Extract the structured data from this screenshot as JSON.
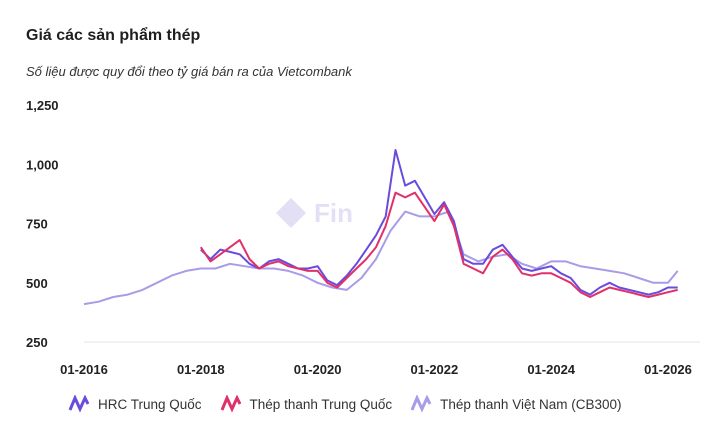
{
  "title": "Giá các sản phẩm thép",
  "subtitle": "Số liệu được quy đổi theo tỷ giá bán ra của Vietcombank",
  "watermark_text": "Fin",
  "colors": {
    "hrc": "#6a4bdb",
    "thep_tq": "#e0306a",
    "thep_vn": "#a99be8",
    "axis": "#222222"
  },
  "chart_data": {
    "type": "line",
    "title": "Giá các sản phẩm thép",
    "subtitle": "Số liệu được quy đổi theo tỷ giá bán ra của Vietcombank",
    "x_ticks": [
      "01-2016",
      "01-2018",
      "01-2020",
      "01-2022",
      "01-2024",
      "01-2026"
    ],
    "y_ticks": [
      "250",
      "500",
      "750",
      "1,000",
      "1,250"
    ],
    "ylim": [
      250,
      1250
    ],
    "xlim": [
      "2016-01",
      "2026-04"
    ],
    "legend_position": "bottom",
    "series": [
      {
        "name": "HRC Trung Quốc",
        "color": "#6a4bdb",
        "x": [
          "2018-01",
          "2018-03",
          "2018-05",
          "2018-07",
          "2018-09",
          "2018-11",
          "2019-01",
          "2019-03",
          "2019-05",
          "2019-07",
          "2019-09",
          "2019-11",
          "2020-01",
          "2020-03",
          "2020-05",
          "2020-07",
          "2020-09",
          "2020-11",
          "2021-01",
          "2021-03",
          "2021-05",
          "2021-07",
          "2021-09",
          "2021-11",
          "2022-01",
          "2022-03",
          "2022-05",
          "2022-07",
          "2022-09",
          "2022-11",
          "2023-01",
          "2023-03",
          "2023-05",
          "2023-07",
          "2023-09",
          "2023-11",
          "2024-01",
          "2024-03",
          "2024-05",
          "2024-07",
          "2024-09",
          "2024-11",
          "2025-01",
          "2025-03",
          "2025-05",
          "2025-07",
          "2025-09",
          "2025-11",
          "2026-01",
          "2026-03"
        ],
        "y": [
          640,
          600,
          640,
          630,
          620,
          580,
          560,
          590,
          600,
          580,
          560,
          560,
          570,
          510,
          490,
          530,
          580,
          640,
          700,
          780,
          1060,
          910,
          930,
          860,
          790,
          840,
          760,
          600,
          580,
          580,
          640,
          660,
          610,
          560,
          550,
          560,
          570,
          540,
          520,
          470,
          450,
          480,
          500,
          480,
          470,
          460,
          450,
          460,
          480,
          480
        ]
      },
      {
        "name": "Thép thanh Trung Quốc",
        "color": "#e0306a",
        "x": [
          "2018-01",
          "2018-03",
          "2018-05",
          "2018-07",
          "2018-09",
          "2018-11",
          "2019-01",
          "2019-03",
          "2019-05",
          "2019-07",
          "2019-09",
          "2019-11",
          "2020-01",
          "2020-03",
          "2020-05",
          "2020-07",
          "2020-09",
          "2020-11",
          "2021-01",
          "2021-03",
          "2021-05",
          "2021-07",
          "2021-09",
          "2021-11",
          "2022-01",
          "2022-03",
          "2022-05",
          "2022-07",
          "2022-09",
          "2022-11",
          "2023-01",
          "2023-03",
          "2023-05",
          "2023-07",
          "2023-09",
          "2023-11",
          "2024-01",
          "2024-03",
          "2024-05",
          "2024-07",
          "2024-09",
          "2024-11",
          "2025-01",
          "2025-03",
          "2025-05",
          "2025-07",
          "2025-09",
          "2025-11",
          "2026-01",
          "2026-03"
        ],
        "y": [
          650,
          590,
          620,
          650,
          680,
          600,
          560,
          580,
          590,
          570,
          560,
          550,
          550,
          500,
          480,
          520,
          560,
          600,
          650,
          740,
          880,
          860,
          880,
          820,
          760,
          830,
          740,
          580,
          560,
          540,
          610,
          640,
          600,
          540,
          530,
          540,
          540,
          520,
          500,
          460,
          440,
          460,
          480,
          470,
          460,
          450,
          440,
          450,
          460,
          470
        ]
      },
      {
        "name": "Thép thanh Việt Nam (CB300)",
        "color": "#a99be8",
        "x": [
          "2016-01",
          "2016-04",
          "2016-07",
          "2016-10",
          "2017-01",
          "2017-04",
          "2017-07",
          "2017-10",
          "2018-01",
          "2018-04",
          "2018-07",
          "2018-10",
          "2019-01",
          "2019-04",
          "2019-07",
          "2019-10",
          "2020-01",
          "2020-04",
          "2020-07",
          "2020-10",
          "2021-01",
          "2021-04",
          "2021-07",
          "2021-10",
          "2022-01",
          "2022-04",
          "2022-07",
          "2022-10",
          "2023-01",
          "2023-04",
          "2023-07",
          "2023-10",
          "2024-01",
          "2024-04",
          "2024-07",
          "2024-10",
          "2025-01",
          "2025-04",
          "2025-07",
          "2025-10",
          "2026-01",
          "2026-03"
        ],
        "y": [
          410,
          420,
          440,
          450,
          470,
          500,
          530,
          550,
          560,
          560,
          580,
          570,
          560,
          560,
          550,
          530,
          500,
          480,
          470,
          520,
          600,
          720,
          800,
          780,
          780,
          800,
          620,
          590,
          610,
          620,
          580,
          560,
          590,
          590,
          570,
          560,
          550,
          540,
          520,
          500,
          500,
          550
        ]
      }
    ]
  }
}
